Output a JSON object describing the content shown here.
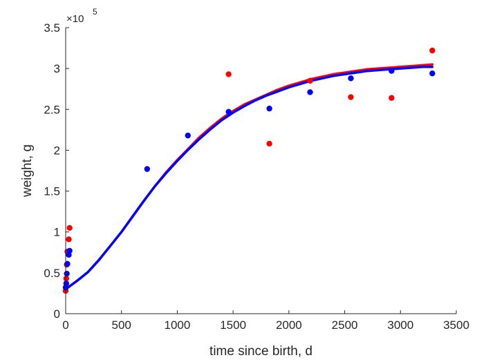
{
  "chart_data": {
    "type": "scatter",
    "title": "",
    "xlabel": "time since birth, d",
    "ylabel": "weight, g",
    "y_exponent_label": {
      "base": "×10",
      "power": "5"
    },
    "xlim": [
      0,
      3500
    ],
    "ylim": [
      0,
      3.5
    ],
    "xticks": [
      0,
      500,
      1000,
      1500,
      2000,
      2500,
      3000,
      3500
    ],
    "yticks": [
      0,
      0.5,
      1,
      1.5,
      2,
      2.5,
      3,
      3.5
    ],
    "xtick_labels": [
      "0",
      "500",
      "1000",
      "1500",
      "2000",
      "2500",
      "3000",
      "3500"
    ],
    "ytick_labels": [
      "0",
      "0.5",
      "1",
      "1.5",
      "2",
      "2.5",
      "3",
      "3.5"
    ],
    "grid": false,
    "box": false,
    "series": [
      {
        "kind": "points",
        "color": "#ff0000",
        "points": [
          [
            0,
            0.28
          ],
          [
            5,
            0.43
          ],
          [
            10,
            0.6
          ],
          [
            15,
            0.76
          ],
          [
            28,
            0.91
          ],
          [
            35,
            1.05
          ],
          [
            1460,
            2.93
          ],
          [
            1825,
            2.08
          ],
          [
            2190,
            2.85
          ],
          [
            2555,
            2.65
          ],
          [
            2920,
            2.64
          ],
          [
            3285,
            3.22
          ]
        ]
      },
      {
        "kind": "points",
        "color": "#0000ff",
        "points": [
          [
            0,
            0.32
          ],
          [
            5,
            0.37
          ],
          [
            10,
            0.49
          ],
          [
            15,
            0.61
          ],
          [
            28,
            0.72
          ],
          [
            35,
            0.77
          ],
          [
            730,
            1.77
          ],
          [
            1095,
            2.18
          ],
          [
            1460,
            2.47
          ],
          [
            1825,
            2.51
          ],
          [
            2190,
            2.71
          ],
          [
            2555,
            2.88
          ],
          [
            2920,
            2.97
          ],
          [
            3285,
            2.94
          ]
        ]
      },
      {
        "kind": "line",
        "color": "#ff0000",
        "x": [
          0,
          100,
          200,
          300,
          400,
          500,
          600,
          700,
          800,
          900,
          1000,
          1100,
          1200,
          1300,
          1400,
          1500,
          1600,
          1700,
          1800,
          1900,
          2000,
          2100,
          2200,
          2300,
          2400,
          2500,
          2600,
          2700,
          2800,
          2900,
          3000,
          3100,
          3200,
          3285
        ],
        "y": [
          0.3,
          0.4,
          0.51,
          0.66,
          0.83,
          1.0,
          1.19,
          1.38,
          1.56,
          1.73,
          1.88,
          2.02,
          2.16,
          2.28,
          2.39,
          2.48,
          2.56,
          2.62,
          2.68,
          2.74,
          2.79,
          2.83,
          2.87,
          2.9,
          2.93,
          2.95,
          2.97,
          2.99,
          3.0,
          3.01,
          3.02,
          3.03,
          3.04,
          3.05
        ]
      },
      {
        "kind": "line",
        "color": "#0000ff",
        "x": [
          0,
          100,
          200,
          300,
          400,
          500,
          600,
          700,
          800,
          900,
          1000,
          1100,
          1200,
          1300,
          1400,
          1500,
          1600,
          1700,
          1800,
          1900,
          2000,
          2100,
          2200,
          2300,
          2400,
          2500,
          2600,
          2700,
          2800,
          2900,
          3000,
          3100,
          3200,
          3285
        ],
        "y": [
          0.3,
          0.4,
          0.51,
          0.66,
          0.83,
          1.0,
          1.19,
          1.38,
          1.56,
          1.72,
          1.87,
          2.01,
          2.14,
          2.26,
          2.37,
          2.46,
          2.54,
          2.61,
          2.67,
          2.72,
          2.77,
          2.81,
          2.85,
          2.88,
          2.91,
          2.93,
          2.95,
          2.97,
          2.98,
          2.99,
          3.0,
          3.01,
          3.02,
          3.02
        ]
      }
    ]
  }
}
